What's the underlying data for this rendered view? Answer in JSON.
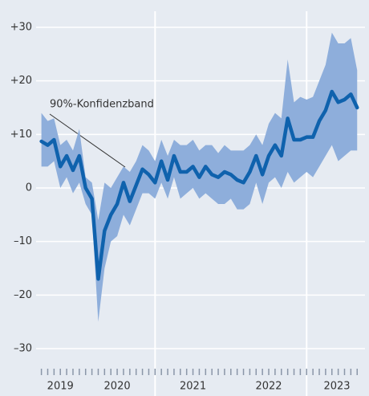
{
  "chart_data": {
    "type": "line",
    "x": [
      2019.5,
      2019.5833,
      2019.6667,
      2019.75,
      2019.8333,
      2019.9167,
      2020.0,
      2020.0833,
      2020.1667,
      2020.25,
      2020.3333,
      2020.4167,
      2020.5,
      2020.5833,
      2020.6667,
      2020.75,
      2020.8333,
      2020.9167,
      2021.0,
      2021.0833,
      2021.1667,
      2021.25,
      2021.3333,
      2021.4167,
      2021.5,
      2021.5833,
      2021.6667,
      2021.75,
      2021.8333,
      2021.9167,
      2022.0,
      2022.0833,
      2022.1667,
      2022.25,
      2022.3333,
      2022.4167,
      2022.5,
      2022.5833,
      2022.6667,
      2022.75,
      2022.8333,
      2022.9167,
      2023.0,
      2023.0833,
      2023.1667,
      2023.25,
      2023.3333,
      2023.4167,
      2023.5,
      2023.5833,
      2023.6667
    ],
    "series": [
      {
        "color": "#0f62ad",
        "values": [
          8.7,
          8,
          9,
          4,
          6,
          3.3,
          6,
          0,
          -2,
          -17,
          -8,
          -5,
          -3,
          1,
          -2.5,
          0.5,
          3.5,
          2.5,
          1,
          5,
          1.5,
          6,
          3,
          3,
          4,
          2,
          4,
          2.5,
          2,
          3,
          2.5,
          1.5,
          1,
          3,
          6,
          2.5,
          6,
          8,
          6,
          13,
          9,
          9,
          9.5,
          9.5,
          12.5,
          14.5,
          18,
          16,
          16.5,
          17.5,
          15
        ]
      }
    ],
    "band": {
      "label": "90%-Konfidenzband",
      "color": "#8eaedb",
      "upper": [
        14,
        12.5,
        13,
        8,
        9,
        7,
        11,
        2,
        1,
        -6,
        1,
        0,
        2,
        4,
        3,
        5,
        8,
        7,
        5,
        9,
        6,
        9,
        8,
        8,
        9,
        7,
        8,
        8,
        6.5,
        8,
        7,
        7,
        7,
        8,
        10,
        8,
        12,
        14,
        13,
        24,
        16,
        17,
        16.5,
        17,
        20,
        23,
        29,
        27,
        27,
        28,
        22
      ],
      "lower": [
        4,
        4,
        5,
        0,
        2,
        -1,
        1,
        -3,
        -5,
        -25,
        -15,
        -10,
        -9,
        -5,
        -7,
        -4,
        -1,
        -1,
        -2,
        1,
        -2,
        2,
        -2,
        -1,
        0,
        -2,
        -1,
        -2,
        -3,
        -3,
        -2,
        -4,
        -4,
        -3,
        1,
        -3,
        1,
        2,
        0,
        3,
        1,
        2,
        3,
        2,
        4,
        6,
        8,
        5,
        6,
        7,
        7
      ]
    },
    "xlim": [
      2019.43,
      2023.77
    ],
    "xticks": [
      {
        "value": 2019.75,
        "label": "2019"
      },
      {
        "value": 2020.5,
        "label": "2020"
      },
      {
        "value": 2021.5,
        "label": "2021"
      },
      {
        "value": 2022.5,
        "label": "2022"
      },
      {
        "value": 2023.4,
        "label": "2023"
      }
    ],
    "xgrid": [
      2021,
      2023
    ],
    "ylim": [
      -32.7,
      33
    ],
    "yticks": [
      {
        "value": 30,
        "label": "+30"
      },
      {
        "value": 20,
        "label": "+20"
      },
      {
        "value": 10,
        "label": "+10"
      },
      0,
      {
        "value": -10,
        "label": "–10"
      },
      {
        "value": -20,
        "label": "–20"
      },
      {
        "value": -30,
        "label": "–30"
      }
    ],
    "grid": true
  }
}
